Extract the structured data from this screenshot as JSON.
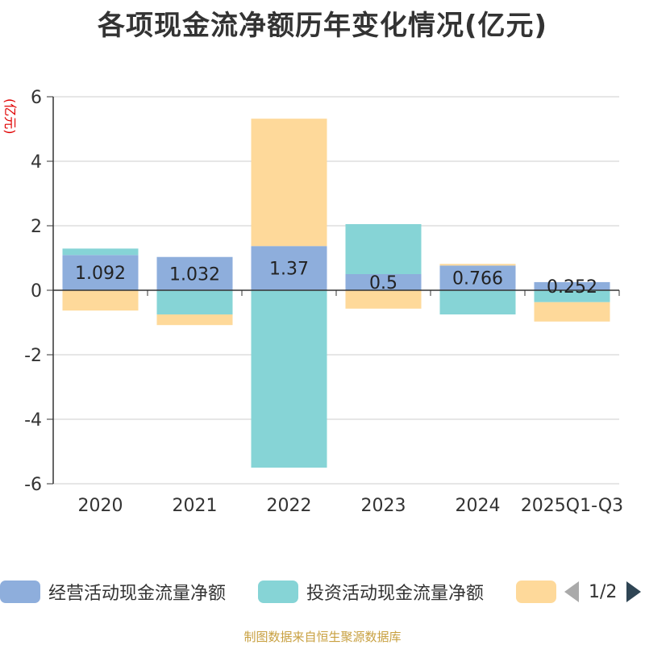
{
  "title": "各项现金流净额历年变化情况(亿元)",
  "footer": "制图数据来自恒生聚源数据库",
  "legend": {
    "items": [
      {
        "label": "经营活动现金流量净额",
        "color": "#8eaedc"
      },
      {
        "label": "投资活动现金流量净额",
        "color": "#86d4d6"
      },
      {
        "label": "",
        "color": "#fed99a"
      }
    ],
    "page": "1/2"
  },
  "chart_data": {
    "type": "bar",
    "stacked": true,
    "ylabel": "(亿元)",
    "ylim": [
      -6,
      6
    ],
    "yticks": [
      6,
      4,
      2,
      0,
      -2,
      -4,
      -6
    ],
    "grid": true,
    "legend_position": "bottom",
    "categories": [
      "2020",
      "2021",
      "2022",
      "2023",
      "2024",
      "2025Q1-Q3"
    ],
    "series": [
      {
        "name": "经营活动现金流量净额",
        "color": "#8eaedc",
        "values": [
          1.092,
          1.032,
          1.37,
          0.5,
          0.766,
          0.252
        ],
        "labels": [
          "1.092",
          "1.032",
          "1.37",
          "0.5",
          "0.766",
          "0.252"
        ]
      },
      {
        "name": "投资活动现金流量净额",
        "color": "#86d4d6",
        "values": [
          0.2,
          -0.75,
          -5.5,
          1.55,
          -0.75,
          -0.37
        ]
      },
      {
        "color": "#fed99a",
        "values": [
          -0.63,
          -0.33,
          3.95,
          -0.57,
          0.05,
          -0.6
        ]
      }
    ]
  }
}
